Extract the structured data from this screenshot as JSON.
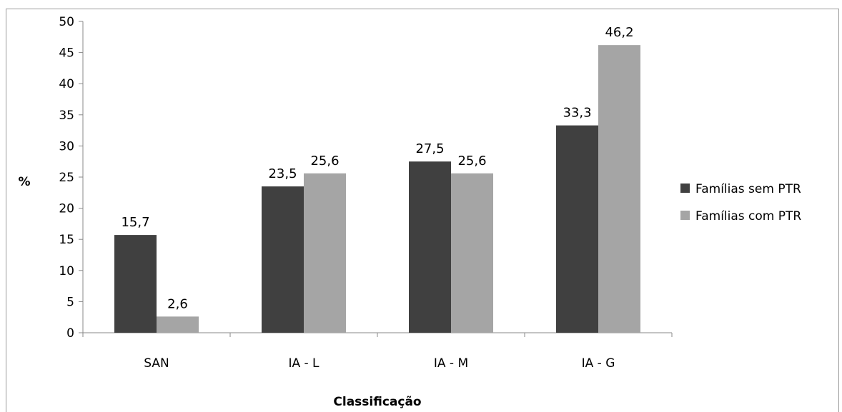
{
  "chart_data": {
    "type": "bar",
    "categories": [
      "SAN",
      "IA - L",
      "IA - M",
      "IA - G"
    ],
    "series": [
      {
        "name": "Famílias sem PTR",
        "values": [
          15.7,
          23.5,
          27.5,
          33.3
        ],
        "labels": [
          "15,7",
          "23,5",
          "27,5",
          "33,3"
        ],
        "color": "#404040"
      },
      {
        "name": "Famílias com PTR",
        "values": [
          2.6,
          25.6,
          25.6,
          46.2
        ],
        "labels": [
          "2,6",
          "25,6",
          "25,6",
          "46,2"
        ],
        "color": "#a5a5a5"
      }
    ],
    "xlabel": "Classificação",
    "ylabel": "%",
    "ylim": [
      0,
      50
    ],
    "yticks": [
      0,
      5,
      10,
      15,
      20,
      25,
      30,
      35,
      40,
      45,
      50
    ],
    "grid": false,
    "legend_position": "right"
  }
}
